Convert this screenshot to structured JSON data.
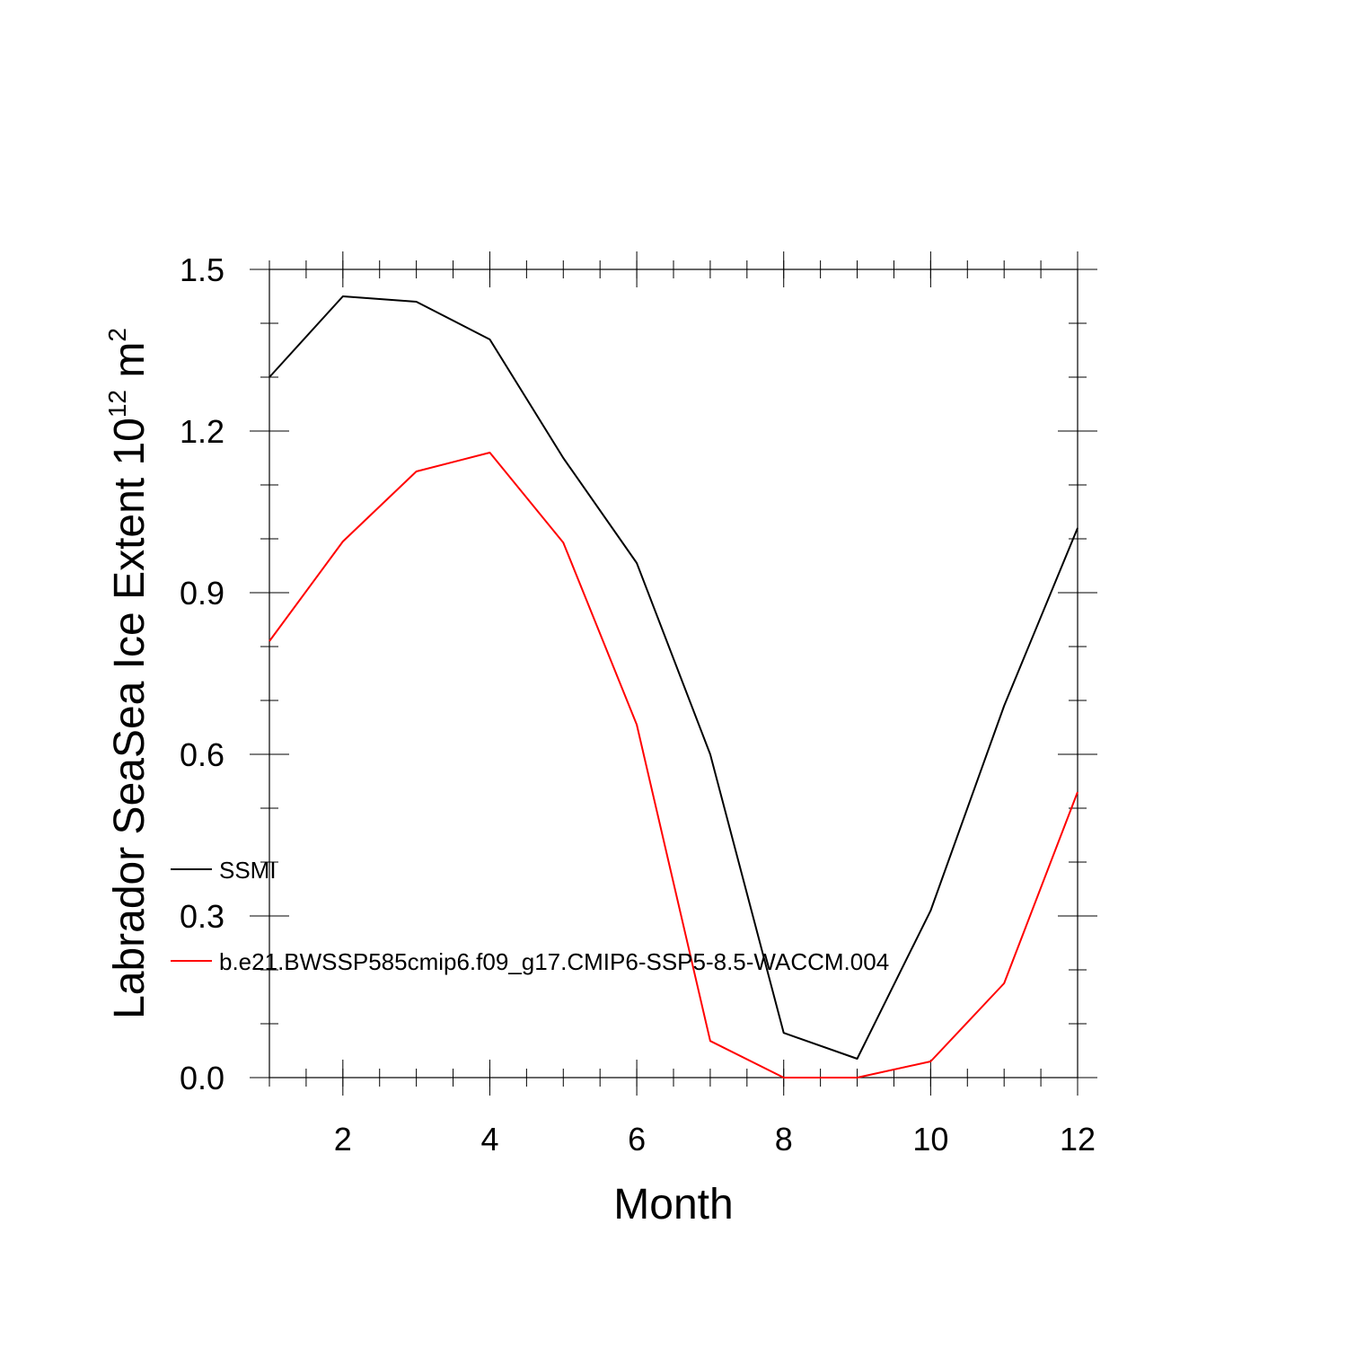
{
  "chart_data": {
    "type": "line",
    "title": "",
    "xlabel": "Month",
    "ylabel": {
      "main": "Labrador SeaSea Ice Extent 10",
      "exp": "12",
      "unit": " m",
      "unit_exp": "2"
    },
    "xlim": [
      1,
      12
    ],
    "ylim": [
      0,
      1.5
    ],
    "x_ticks": [
      2,
      4,
      6,
      8,
      10,
      12
    ],
    "x_tick_labels": [
      "2",
      "4",
      "6",
      "8",
      "10",
      "12"
    ],
    "y_ticks": [
      0,
      0.3,
      0.6,
      0.9,
      1.2,
      1.5
    ],
    "y_tick_labels": [
      "0.0",
      "0.3",
      "0.6",
      "0.9",
      "1.2",
      "1.5"
    ],
    "x_minor_step": 0.5,
    "y_minor_step": 0.1,
    "grid": false,
    "legend_position": "left-inside",
    "x": [
      1,
      2,
      3,
      4,
      5,
      6,
      7,
      8,
      9,
      10,
      11,
      12
    ],
    "series": [
      {
        "name": "SSMI",
        "color": "#000000",
        "values": [
          1.3,
          1.45,
          1.44,
          1.37,
          1.15,
          0.955,
          0.6,
          0.083,
          0.035,
          0.31,
          0.69,
          1.02
        ]
      },
      {
        "name": "b.e21.BWSSP585cmip6.f09_g17.CMIP6-SSP5-8.5-WACCM.004",
        "color": "#ff0000",
        "values": [
          0.81,
          0.995,
          1.125,
          1.16,
          0.993,
          0.655,
          0.068,
          0.0,
          0.0,
          0.03,
          0.175,
          0.53
        ]
      }
    ]
  }
}
